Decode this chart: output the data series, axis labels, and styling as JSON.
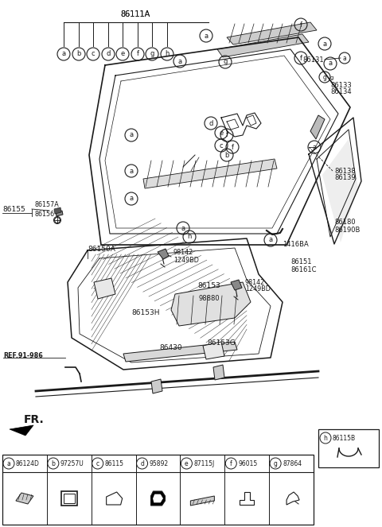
{
  "bg_color": "#ffffff",
  "line_color": "#1a1a1a",
  "fig_width": 4.8,
  "fig_height": 6.63,
  "dpi": 100,
  "bottom_parts": [
    {
      "letter": "a",
      "code": "86124D"
    },
    {
      "letter": "b",
      "code": "97257U"
    },
    {
      "letter": "c",
      "code": "86115"
    },
    {
      "letter": "d",
      "code": "95892"
    },
    {
      "letter": "e",
      "code": "87115J"
    },
    {
      "letter": "f",
      "code": "96015"
    },
    {
      "letter": "g",
      "code": "87864"
    }
  ]
}
